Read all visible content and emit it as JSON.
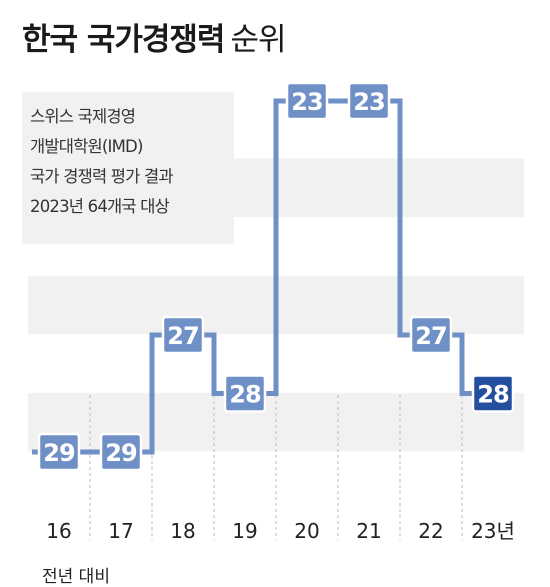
{
  "title": "한국 국가경쟁력",
  "subtitle": "순위",
  "note_lines": [
    "스위스 국제경영",
    "개발대학원(IMD)",
    "국가 경쟁력 평가 결과",
    "2023년 64개국 대상"
  ],
  "footer": "전년 대비",
  "colors": {
    "line": "#6f8fc7",
    "label_bg": "#6f8fc7",
    "highlight_bg": "#244f9e",
    "band": "#f1f1f1"
  },
  "chart_data": {
    "type": "line",
    "step": true,
    "inverted_y": true,
    "title": "한국 국가경쟁력 순위",
    "categories": [
      "16",
      "17",
      "18",
      "19",
      "20",
      "21",
      "22",
      "23년"
    ],
    "series": [
      {
        "values": [
          29,
          29,
          27,
          28,
          23,
          23,
          27,
          28
        ]
      }
    ],
    "highlight_last": true,
    "grid": "horizontal bands"
  }
}
